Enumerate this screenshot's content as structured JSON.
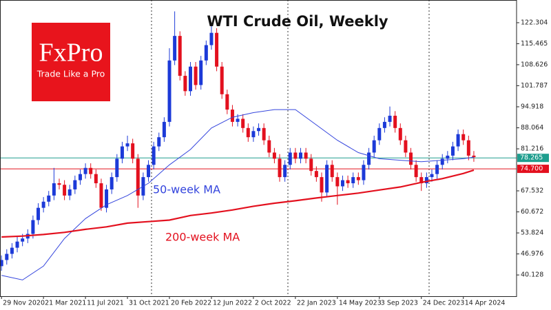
{
  "logo": {
    "brand": "FxPro",
    "tagline": "Trade Like a Pro"
  },
  "chart_data": {
    "type": "candlestick",
    "title": "WTI Crude Oil, Weekly",
    "x": [
      "2020-11-29",
      "2020-12-13",
      "2020-12-27",
      "2021-01-10",
      "2021-01-24",
      "2021-02-07",
      "2021-02-21",
      "2021-03-07",
      "2021-03-21",
      "2021-04-04",
      "2021-04-18",
      "2021-05-02",
      "2021-05-16",
      "2021-05-30",
      "2021-06-13",
      "2021-06-27",
      "2021-07-11",
      "2021-07-25",
      "2021-08-08",
      "2021-08-22",
      "2021-09-05",
      "2021-09-19",
      "2021-10-03",
      "2021-10-17",
      "2021-10-31",
      "2021-11-14",
      "2021-11-28",
      "2021-12-12",
      "2021-12-26",
      "2022-01-09",
      "2022-01-23",
      "2022-02-06",
      "2022-02-20",
      "2022-03-06",
      "2022-03-20",
      "2022-04-03",
      "2022-04-17",
      "2022-05-01",
      "2022-05-15",
      "2022-05-29",
      "2022-06-12",
      "2022-06-26",
      "2022-07-10",
      "2022-07-24",
      "2022-08-07",
      "2022-08-21",
      "2022-09-04",
      "2022-09-18",
      "2022-10-02",
      "2022-10-16",
      "2022-10-30",
      "2022-11-13",
      "2022-11-27",
      "2022-12-11",
      "2022-12-25",
      "2023-01-08",
      "2023-01-22",
      "2023-02-05",
      "2023-02-19",
      "2023-03-05",
      "2023-03-19",
      "2023-04-02",
      "2023-04-16",
      "2023-04-30",
      "2023-05-14",
      "2023-05-28",
      "2023-06-11",
      "2023-06-25",
      "2023-07-09",
      "2023-07-23",
      "2023-08-06",
      "2023-08-20",
      "2023-09-03",
      "2023-09-17",
      "2023-10-01",
      "2023-10-15",
      "2023-10-29",
      "2023-11-12",
      "2023-11-26",
      "2023-12-10",
      "2023-12-24",
      "2024-01-07",
      "2024-01-21",
      "2024-02-04",
      "2024-02-18",
      "2024-03-03",
      "2024-03-17",
      "2024-03-31",
      "2024-04-14",
      "2024-04-28",
      "2024-05-12"
    ],
    "open": [
      43,
      45,
      47,
      49,
      51,
      52,
      53.5,
      58,
      62,
      64,
      66,
      70,
      69.5,
      66,
      68,
      71,
      73,
      75,
      73,
      70,
      62,
      68,
      72,
      78,
      82,
      83,
      78,
      66,
      72,
      76,
      82,
      85,
      90,
      110,
      118,
      105,
      100,
      108,
      102,
      110,
      115,
      119,
      108,
      99,
      94,
      90,
      91,
      88,
      85,
      87,
      88,
      84,
      80,
      78,
      72,
      76,
      80,
      78,
      80,
      78,
      74,
      72,
      67,
      76,
      72,
      69,
      71,
      70,
      72,
      71,
      76,
      80,
      84,
      88,
      90,
      92,
      88,
      84,
      80,
      76,
      72,
      70,
      72,
      73,
      76,
      78,
      79,
      82,
      86,
      84,
      79
    ],
    "high": [
      46.5,
      48.5,
      50.5,
      52.5,
      53.5,
      55,
      59.5,
      63.5,
      65.5,
      67.5,
      75,
      71.5,
      71,
      69.5,
      72.5,
      74.5,
      76.5,
      76.5,
      74.5,
      71.5,
      69.5,
      73.5,
      79.5,
      83.5,
      85.5,
      84.5,
      79.5,
      73.5,
      77.5,
      83.5,
      86.5,
      91.5,
      114,
      126,
      119.5,
      106.5,
      109.5,
      109.5,
      111.5,
      116.5,
      122,
      120.5,
      109.5,
      100.5,
      95.5,
      92.5,
      92.5,
      89.5,
      88.5,
      89.5,
      89.5,
      85.5,
      81.5,
      79.5,
      77.5,
      81.5,
      81.5,
      81.5,
      81.5,
      79.5,
      75.5,
      73.5,
      77.5,
      77.5,
      73.5,
      72.5,
      72.5,
      73.5,
      73.5,
      77.5,
      81.5,
      85.5,
      89.5,
      91.5,
      95,
      93.5,
      89.5,
      85.5,
      81.5,
      77.5,
      73.5,
      73.5,
      74.5,
      77.5,
      79.5,
      80.5,
      83.5,
      87.5,
      87.5,
      85.5,
      80.5
    ],
    "low": [
      41.5,
      43.5,
      45.5,
      47.5,
      49.5,
      50.5,
      52,
      56.5,
      60.5,
      62.5,
      64.5,
      68,
      64.5,
      64.5,
      66.5,
      69.5,
      71.5,
      71.5,
      68.5,
      61,
      60.5,
      66.5,
      70.5,
      76.5,
      80.5,
      76.5,
      62,
      64.5,
      70.5,
      74.5,
      80.5,
      83.5,
      88.5,
      108.5,
      103.5,
      98.5,
      98.5,
      100.5,
      100.5,
      108.5,
      113.5,
      106.5,
      97.5,
      92.5,
      88.5,
      88.5,
      86.5,
      83.5,
      83.5,
      85.5,
      82.5,
      78.5,
      76.5,
      70.5,
      70.5,
      74.5,
      76.5,
      76.5,
      76.5,
      72.5,
      70.5,
      64,
      65.5,
      70.5,
      63,
      67.5,
      68.5,
      68.5,
      69.5,
      69.5,
      74.5,
      78.5,
      82.5,
      86.5,
      88.5,
      86.5,
      82.5,
      78.5,
      74.5,
      70.5,
      67.5,
      68.5,
      70.5,
      71.5,
      74.5,
      76.5,
      77.5,
      80.5,
      82.5,
      77.5,
      77
    ],
    "close": [
      45,
      47,
      49,
      51,
      52,
      53.5,
      58,
      62,
      64,
      66,
      70,
      69.5,
      66,
      68,
      71,
      73,
      75,
      73,
      70,
      62,
      68,
      72,
      78,
      82,
      83,
      78,
      66,
      72,
      76,
      82,
      85,
      90,
      110,
      118,
      105,
      100,
      108,
      102,
      110,
      115,
      119,
      108,
      99,
      94,
      90,
      91,
      88,
      85,
      87,
      88,
      84,
      80,
      78,
      72,
      76,
      80,
      78,
      80,
      78,
      74,
      72,
      67,
      76,
      72,
      69,
      71,
      70,
      72,
      71,
      76,
      80,
      84,
      88,
      90,
      92,
      88,
      84,
      80,
      76,
      72,
      70,
      72,
      73,
      76,
      78,
      79,
      82,
      86,
      84,
      79,
      78.5
    ],
    "up_color": "#1c3ad8",
    "down_color": "#e3101e",
    "series": [
      {
        "name": "50-week MA",
        "color": "#3344dd",
        "x": [
          "2020-11-29",
          "2021-01-24",
          "2021-03-21",
          "2021-05-16",
          "2021-07-11",
          "2021-09-05",
          "2021-10-31",
          "2021-12-26",
          "2022-02-20",
          "2022-04-17",
          "2022-06-12",
          "2022-08-07",
          "2022-10-02",
          "2022-11-27",
          "2023-01-22",
          "2023-03-19",
          "2023-05-14",
          "2023-07-09",
          "2023-09-03",
          "2023-10-29",
          "2023-12-24",
          "2024-02-18",
          "2024-04-14",
          "2024-05-12"
        ],
        "values": [
          40,
          38.5,
          43,
          52,
          58.5,
          63,
          66,
          70,
          76,
          81,
          88,
          91.5,
          93,
          94,
          94,
          89,
          84,
          80,
          78,
          77.5,
          77,
          77.5,
          78,
          78.5
        ]
      },
      {
        "name": "200-week MA",
        "color": "#e3101e",
        "x": [
          "2020-11-29",
          "2021-01-24",
          "2021-03-21",
          "2021-05-16",
          "2021-07-11",
          "2021-09-05",
          "2021-10-31",
          "2021-12-26",
          "2022-02-20",
          "2022-04-17",
          "2022-06-12",
          "2022-08-07",
          "2022-10-02",
          "2022-11-27",
          "2023-01-22",
          "2023-03-19",
          "2023-05-14",
          "2023-07-09",
          "2023-09-03",
          "2023-10-29",
          "2023-12-24",
          "2024-02-18",
          "2024-04-14",
          "2024-05-12"
        ],
        "values": [
          52.5,
          52.8,
          53.3,
          54,
          55,
          55.8,
          57,
          57.5,
          58,
          59.5,
          60.3,
          61.3,
          62.5,
          63.5,
          64.3,
          65.2,
          66,
          66.8,
          67.8,
          68.8,
          70.3,
          71.5,
          73.2,
          74.3
        ]
      }
    ],
    "price_lines": [
      {
        "value": 78.265,
        "color": "#1e9e8e"
      },
      {
        "value": {
          "value": 74.7,
          "label": "74.700"
        },
        "color": "#e3101e"
      }
    ],
    "xlim": [
      "2020-11-25",
      "2024-09-03"
    ],
    "xticks": [
      {
        "value": "2020-11-29",
        "label": "29 Nov 2020"
      },
      {
        "value": "2021-03-21",
        "label": "21 Mar 2021"
      },
      {
        "value": "2021-07-11",
        "label": "11 Jul 2021"
      },
      {
        "value": "2021-10-31",
        "label": "31 Oct 2021"
      },
      {
        "value": "2022-02-20",
        "label": "20 Feb 2022"
      },
      {
        "value": "2022-06-12",
        "label": "12 Jun 2022"
      },
      {
        "value": "2022-10-02",
        "label": "2 Oct 2022"
      },
      {
        "value": "2023-01-22",
        "label": "22 Jan 2023"
      },
      {
        "value": "2023-05-14",
        "label": "14 May 2023"
      },
      {
        "value": "2023-09-03",
        "label": "3 Sep 2023"
      },
      {
        "value": "2023-12-24",
        "label": "24 Dec 2023"
      },
      {
        "value": "2024-04-14",
        "label": "14 Apr 2024"
      }
    ],
    "ylim": [
      33.2,
      129.7
    ],
    "yticks": [
      122.304,
      115.465,
      108.626,
      101.787,
      94.918,
      88.064,
      81.216,
      67.532,
      60.672,
      53.824,
      46.976,
      40.128
    ]
  }
}
